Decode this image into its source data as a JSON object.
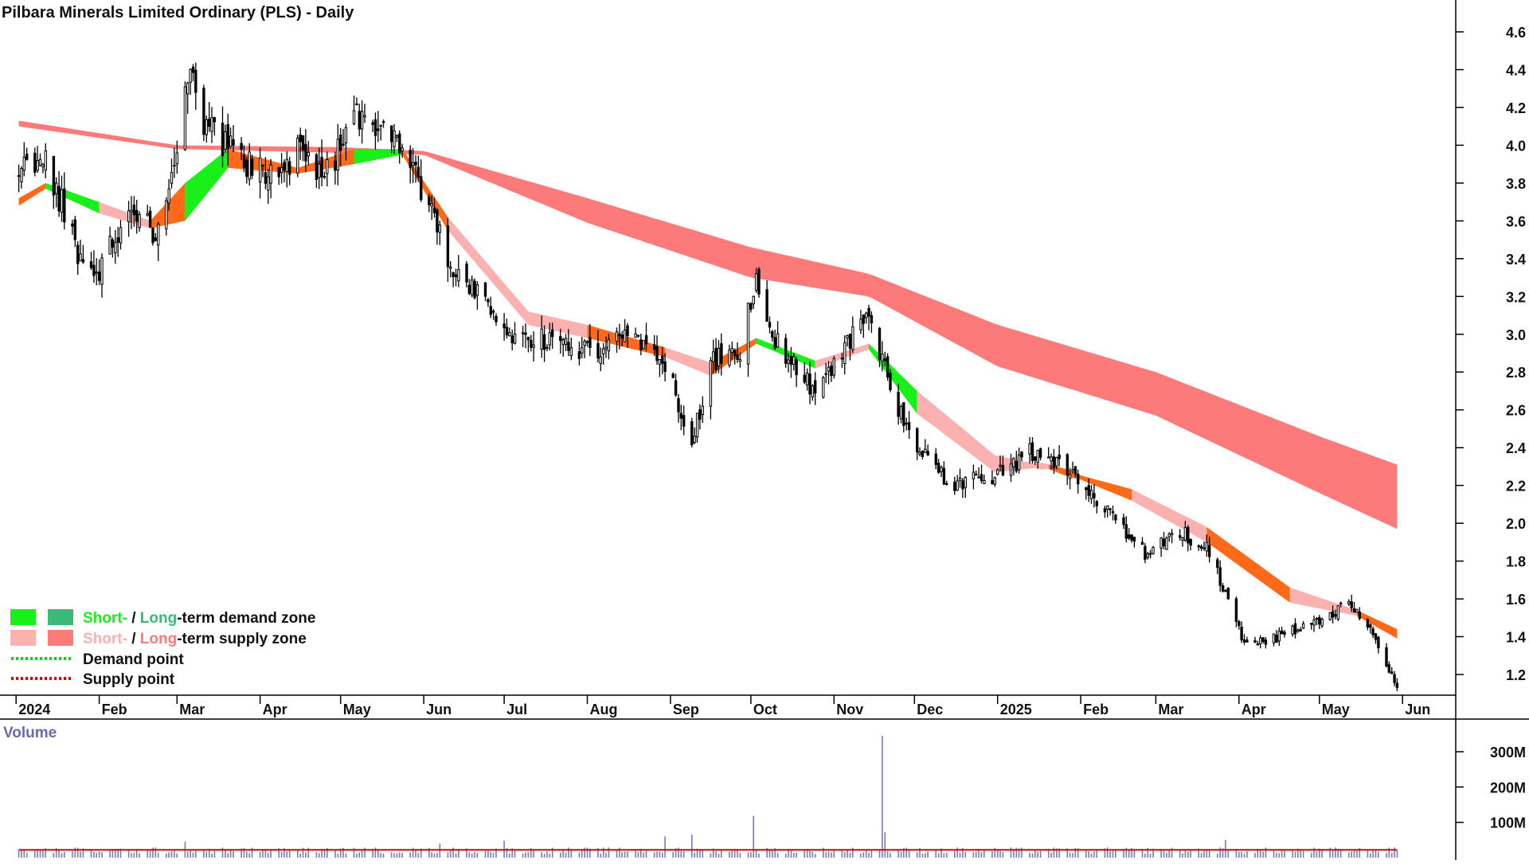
{
  "chart_data": {
    "type": "candlestick",
    "title": "Pilbara Minerals Limited Ordinary (PLS) - Daily",
    "x_tick_labels": [
      "2024",
      "Feb",
      "Mar",
      "Apr",
      "May",
      "Jun",
      "Jul",
      "Aug",
      "Sep",
      "Oct",
      "Nov",
      "Dec",
      "2025",
      "Feb",
      "Mar",
      "Apr",
      "May",
      "Jun"
    ],
    "y_tick_labels": [
      "1.2",
      "1.4",
      "1.6",
      "1.8",
      "2.0",
      "2.2",
      "2.4",
      "2.6",
      "2.8",
      "3.0",
      "3.2",
      "3.4",
      "3.6",
      "3.8",
      "4.0",
      "4.2",
      "4.4",
      "4.6"
    ],
    "ylim": [
      1.08,
      4.72
    ],
    "grid": false,
    "price_key_points": [
      {
        "date": "2024-01-02",
        "close": 3.85
      },
      {
        "date": "2024-01-12",
        "close": 3.92
      },
      {
        "date": "2024-01-24",
        "close": 3.45
      },
      {
        "date": "2024-02-01",
        "close": 3.35
      },
      {
        "date": "2024-02-12",
        "close": 3.62
      },
      {
        "date": "2024-02-23",
        "close": 3.55
      },
      {
        "date": "2024-03-01",
        "close": 3.95
      },
      {
        "date": "2024-03-05",
        "close": 4.4
      },
      {
        "date": "2024-03-12",
        "close": 4.1
      },
      {
        "date": "2024-03-22",
        "close": 3.95
      },
      {
        "date": "2024-04-05",
        "close": 3.85
      },
      {
        "date": "2024-04-15",
        "close": 3.95
      },
      {
        "date": "2024-04-26",
        "close": 3.85
      },
      {
        "date": "2024-05-06",
        "close": 4.15
      },
      {
        "date": "2024-05-17",
        "close": 4.08
      },
      {
        "date": "2024-05-24",
        "close": 3.95
      },
      {
        "date": "2024-06-03",
        "close": 3.7
      },
      {
        "date": "2024-06-10",
        "close": 3.35
      },
      {
        "date": "2024-06-21",
        "close": 3.2
      },
      {
        "date": "2024-07-05",
        "close": 3.0
      },
      {
        "date": "2024-07-19",
        "close": 2.95
      },
      {
        "date": "2024-08-02",
        "close": 2.9
      },
      {
        "date": "2024-08-16",
        "close": 3.0
      },
      {
        "date": "2024-08-30",
        "close": 2.85
      },
      {
        "date": "2024-09-09",
        "close": 2.4
      },
      {
        "date": "2024-09-16",
        "close": 2.85
      },
      {
        "date": "2024-09-27",
        "close": 2.9
      },
      {
        "date": "2024-10-03",
        "close": 3.3
      },
      {
        "date": "2024-10-11",
        "close": 2.95
      },
      {
        "date": "2024-10-25",
        "close": 2.7
      },
      {
        "date": "2024-11-06",
        "close": 2.95
      },
      {
        "date": "2024-11-14",
        "close": 3.15
      },
      {
        "date": "2024-11-22",
        "close": 2.7
      },
      {
        "date": "2024-12-02",
        "close": 2.4
      },
      {
        "date": "2024-12-16",
        "close": 2.2
      },
      {
        "date": "2024-12-31",
        "close": 2.25
      },
      {
        "date": "2025-01-14",
        "close": 2.38
      },
      {
        "date": "2025-01-28",
        "close": 2.3
      },
      {
        "date": "2025-02-11",
        "close": 2.05
      },
      {
        "date": "2025-02-25",
        "close": 1.85
      },
      {
        "date": "2025-03-11",
        "close": 1.95
      },
      {
        "date": "2025-03-21",
        "close": 1.85
      },
      {
        "date": "2025-04-03",
        "close": 1.35
      },
      {
        "date": "2025-04-15",
        "close": 1.4
      },
      {
        "date": "2025-04-30",
        "close": 1.48
      },
      {
        "date": "2025-05-13",
        "close": 1.58
      },
      {
        "date": "2025-05-23",
        "close": 1.35
      },
      {
        "date": "2025-05-30",
        "close": 1.15
      }
    ],
    "long_term_supply_zone": {
      "dates": [
        "2024-01-02",
        "2024-03-01",
        "2024-05-01",
        "2024-06-01",
        "2024-08-01",
        "2024-10-01",
        "2024-11-14",
        "2025-01-01",
        "2025-03-01",
        "2025-05-01",
        "2025-05-30"
      ],
      "upper": [
        4.13,
        4.0,
        3.99,
        3.97,
        3.72,
        3.46,
        3.32,
        3.05,
        2.8,
        2.46,
        2.31
      ],
      "lower": [
        4.1,
        3.98,
        3.96,
        3.95,
        3.59,
        3.3,
        3.2,
        2.83,
        2.57,
        2.16,
        1.97
      ]
    },
    "short_term_zone": {
      "dates": [
        "2024-01-02",
        "2024-01-12",
        "2024-02-01",
        "2024-02-20",
        "2024-03-04",
        "2024-03-20",
        "2024-04-15",
        "2024-05-06",
        "2024-05-24",
        "2024-06-10",
        "2024-07-10",
        "2024-08-01",
        "2024-08-30",
        "2024-09-16",
        "2024-10-03",
        "2024-10-25",
        "2024-11-14",
        "2024-12-02",
        "2024-12-31",
        "2025-01-20",
        "2025-02-20",
        "2025-03-20",
        "2025-04-20",
        "2025-05-15",
        "2025-05-30"
      ],
      "upper": [
        3.72,
        3.8,
        3.7,
        3.6,
        3.8,
        3.98,
        3.88,
        3.98,
        3.98,
        3.62,
        3.12,
        3.05,
        2.93,
        2.85,
        2.98,
        2.86,
        2.95,
        2.7,
        2.36,
        2.3,
        2.18,
        1.98,
        1.66,
        1.54,
        1.44
      ],
      "lower": [
        3.68,
        3.77,
        3.64,
        3.56,
        3.6,
        3.88,
        3.85,
        3.9,
        3.95,
        3.55,
        3.05,
        2.98,
        2.88,
        2.78,
        2.95,
        2.82,
        2.92,
        2.58,
        2.27,
        2.3,
        2.12,
        1.9,
        1.58,
        1.51,
        1.39
      ],
      "state": [
        "orange",
        "green",
        "pink",
        "orange",
        "green",
        "orange",
        "orange",
        "green",
        "orange",
        "pink",
        "pink",
        "orange",
        "pink",
        "orange",
        "green",
        "pink",
        "green",
        "pink",
        "pink",
        "orange",
        "pink",
        "orange",
        "pink",
        "orange",
        "pink"
      ]
    },
    "volume": {
      "title": "Volume",
      "y_tick_labels": [
        "300M",
        "200M",
        "100M"
      ],
      "ylim": [
        0,
        340
      ],
      "unit": "M",
      "typical_daily": 20,
      "average_line": 22,
      "spikes": [
        {
          "date": "2024-03-04",
          "value": 45
        },
        {
          "date": "2024-06-07",
          "value": 40
        },
        {
          "date": "2024-07-01",
          "value": 48
        },
        {
          "date": "2024-08-30",
          "value": 60
        },
        {
          "date": "2024-09-09",
          "value": 65
        },
        {
          "date": "2024-10-02",
          "value": 118
        },
        {
          "date": "2024-11-19",
          "value": 345
        },
        {
          "date": "2024-11-20",
          "value": 72
        },
        {
          "date": "2025-03-27",
          "value": 50
        }
      ]
    },
    "colors": {
      "long_term_supply": "#fd7a7a",
      "short_term_supply": "#fcb1b1",
      "short_term_demand": "#19f019",
      "long_term_demand": "#3cb878",
      "transition": "#ff6a1a",
      "demand_point": "#1ecc1e",
      "supply_point": "#dd0000",
      "volume_bar": "#7a7ab8",
      "volume_avg": "#dd0000",
      "candle": "#000000"
    },
    "legend": {
      "placement": "bottom-left",
      "entries": [
        {
          "short": "Short-",
          "sep": " / ",
          "long": "Long",
          "rest": "-term demand zone",
          "short_color": "#19f019",
          "long_color": "#3cb878"
        },
        {
          "short": "Short-",
          "sep": " / ",
          "long": "Long",
          "rest": "-term supply zone",
          "short_color": "#fcb1b1",
          "long_color": "#fd7a7a"
        },
        {
          "label": "Demand point",
          "color": "#1ecc1e"
        },
        {
          "label": "Supply point",
          "color": "#dd0000"
        }
      ]
    }
  }
}
